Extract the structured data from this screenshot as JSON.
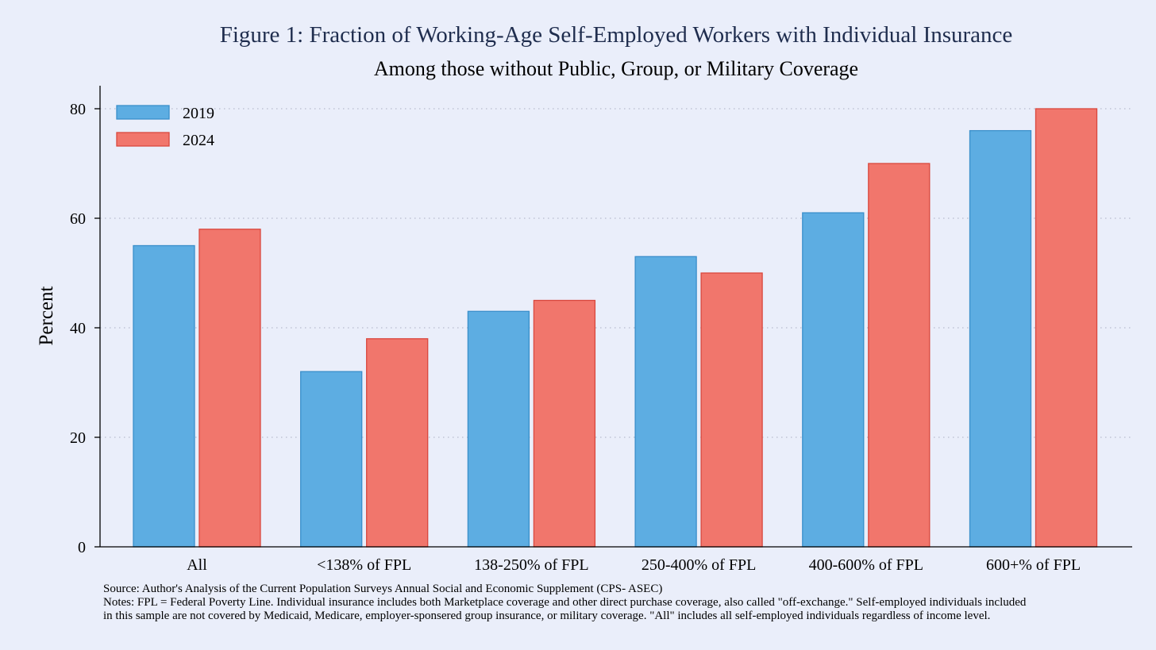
{
  "chart_data": {
    "type": "bar",
    "title": "Figure 1: Fraction of Working-Age Self-Employed Workers with Individual Insurance",
    "subtitle": "Among those without Public, Group, or Military Coverage",
    "xlabel": "",
    "ylabel": "Percent",
    "categories": [
      "All",
      "<138% of FPL",
      "138-250% of FPL",
      "250-400% of FPL",
      "400-600% of FPL",
      "600+% of FPL"
    ],
    "series": [
      {
        "name": "2019",
        "color": "#5DADE2",
        "stroke": "#3A8FCB",
        "values": [
          55,
          32,
          43,
          53,
          61,
          76
        ]
      },
      {
        "name": "2024",
        "color": "#F1766C",
        "stroke": "#D9483E",
        "values": [
          58,
          38,
          45,
          50,
          70,
          80
        ]
      }
    ],
    "ylim": [
      0,
      80
    ],
    "yticks": [
      "0",
      "20",
      "40",
      "60",
      "80"
    ],
    "grid": true,
    "legend_position": "top-left",
    "source_note": "Source: Author's Analysis of the Current Population Surveys Annual Social and Economic Supplement (CPS- ASEC)",
    "notes_line1": "Notes: FPL = Federal Poverty Line. Individual insurance includes both Marketplace coverage and other direct purchase coverage, also called \"off-exchange.\" Self-employed individuals included",
    "notes_line2": "in this sample are not covered by Medicaid, Medicare, employer-sponsered group insurance, or military coverage. \"All\" includes all self-employed individuals regardless of income level."
  }
}
